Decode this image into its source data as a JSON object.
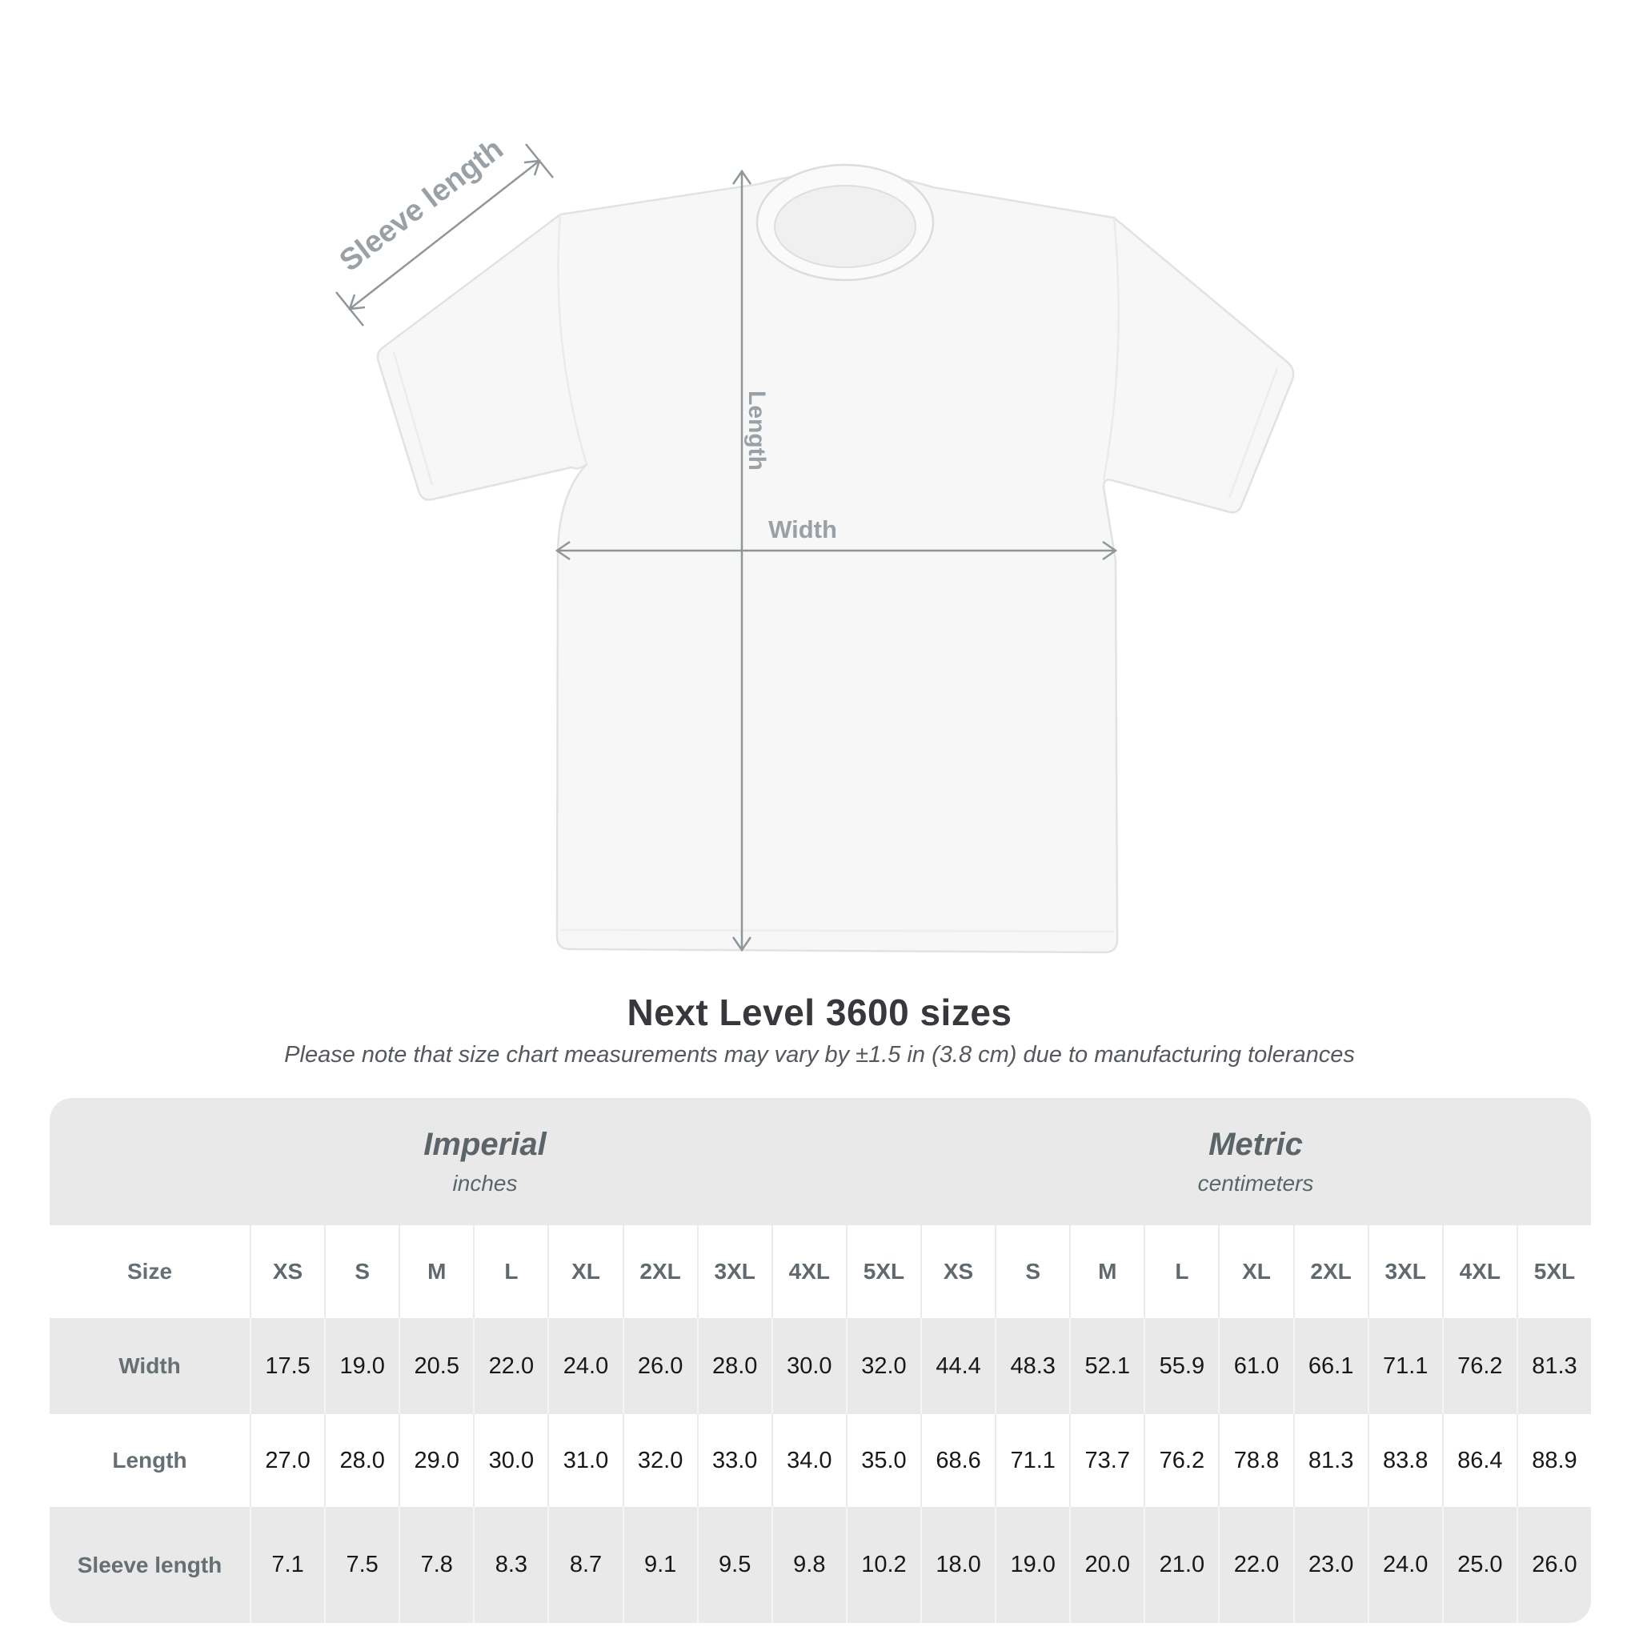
{
  "title": "Next Level 3600 sizes",
  "subtitle": "Please note that size chart measurements may vary by ±1.5 in (3.8 cm) due to manufacturing tolerances",
  "diagram": {
    "labels": {
      "sleeve": "Sleeve length",
      "length": "Length",
      "width": "Width"
    },
    "shirt_color": "#f7f7f7",
    "line_color": "#8f969a",
    "label_color": "#9aa1a6"
  },
  "chart_data": {
    "type": "table",
    "title": "Next Level 3600 sizes",
    "size_label": "Size",
    "groups": [
      {
        "name": "Imperial",
        "unit": "inches"
      },
      {
        "name": "Metric",
        "unit": "centimeters"
      }
    ],
    "sizes": [
      "XS",
      "S",
      "M",
      "L",
      "XL",
      "2XL",
      "3XL",
      "4XL",
      "5XL"
    ],
    "rows": [
      {
        "label": "Width",
        "imperial": [
          "17.5",
          "19.0",
          "20.5",
          "22.0",
          "24.0",
          "26.0",
          "28.0",
          "30.0",
          "32.0"
        ],
        "metric": [
          "44.4",
          "48.3",
          "52.1",
          "55.9",
          "61.0",
          "66.1",
          "71.1",
          "76.2",
          "81.3"
        ]
      },
      {
        "label": "Length",
        "imperial": [
          "27.0",
          "28.0",
          "29.0",
          "30.0",
          "31.0",
          "32.0",
          "33.0",
          "34.0",
          "35.0"
        ],
        "metric": [
          "68.6",
          "71.1",
          "73.7",
          "76.2",
          "78.8",
          "81.3",
          "83.8",
          "86.4",
          "88.9"
        ]
      },
      {
        "label": "Sleeve length",
        "imperial": [
          "7.1",
          "7.5",
          "7.8",
          "8.3",
          "8.7",
          "9.1",
          "9.5",
          "9.8",
          "10.2"
        ],
        "metric": [
          "18.0",
          "19.0",
          "20.0",
          "21.0",
          "22.0",
          "23.0",
          "24.0",
          "25.0",
          "26.0"
        ]
      }
    ]
  },
  "colors": {
    "table_bg": "#e9e9e9",
    "row_alt": "#ffffff",
    "header_text": "#5f696e",
    "value_text": "#17181a",
    "title_text": "#37383b",
    "subtitle_text": "#55585c"
  }
}
